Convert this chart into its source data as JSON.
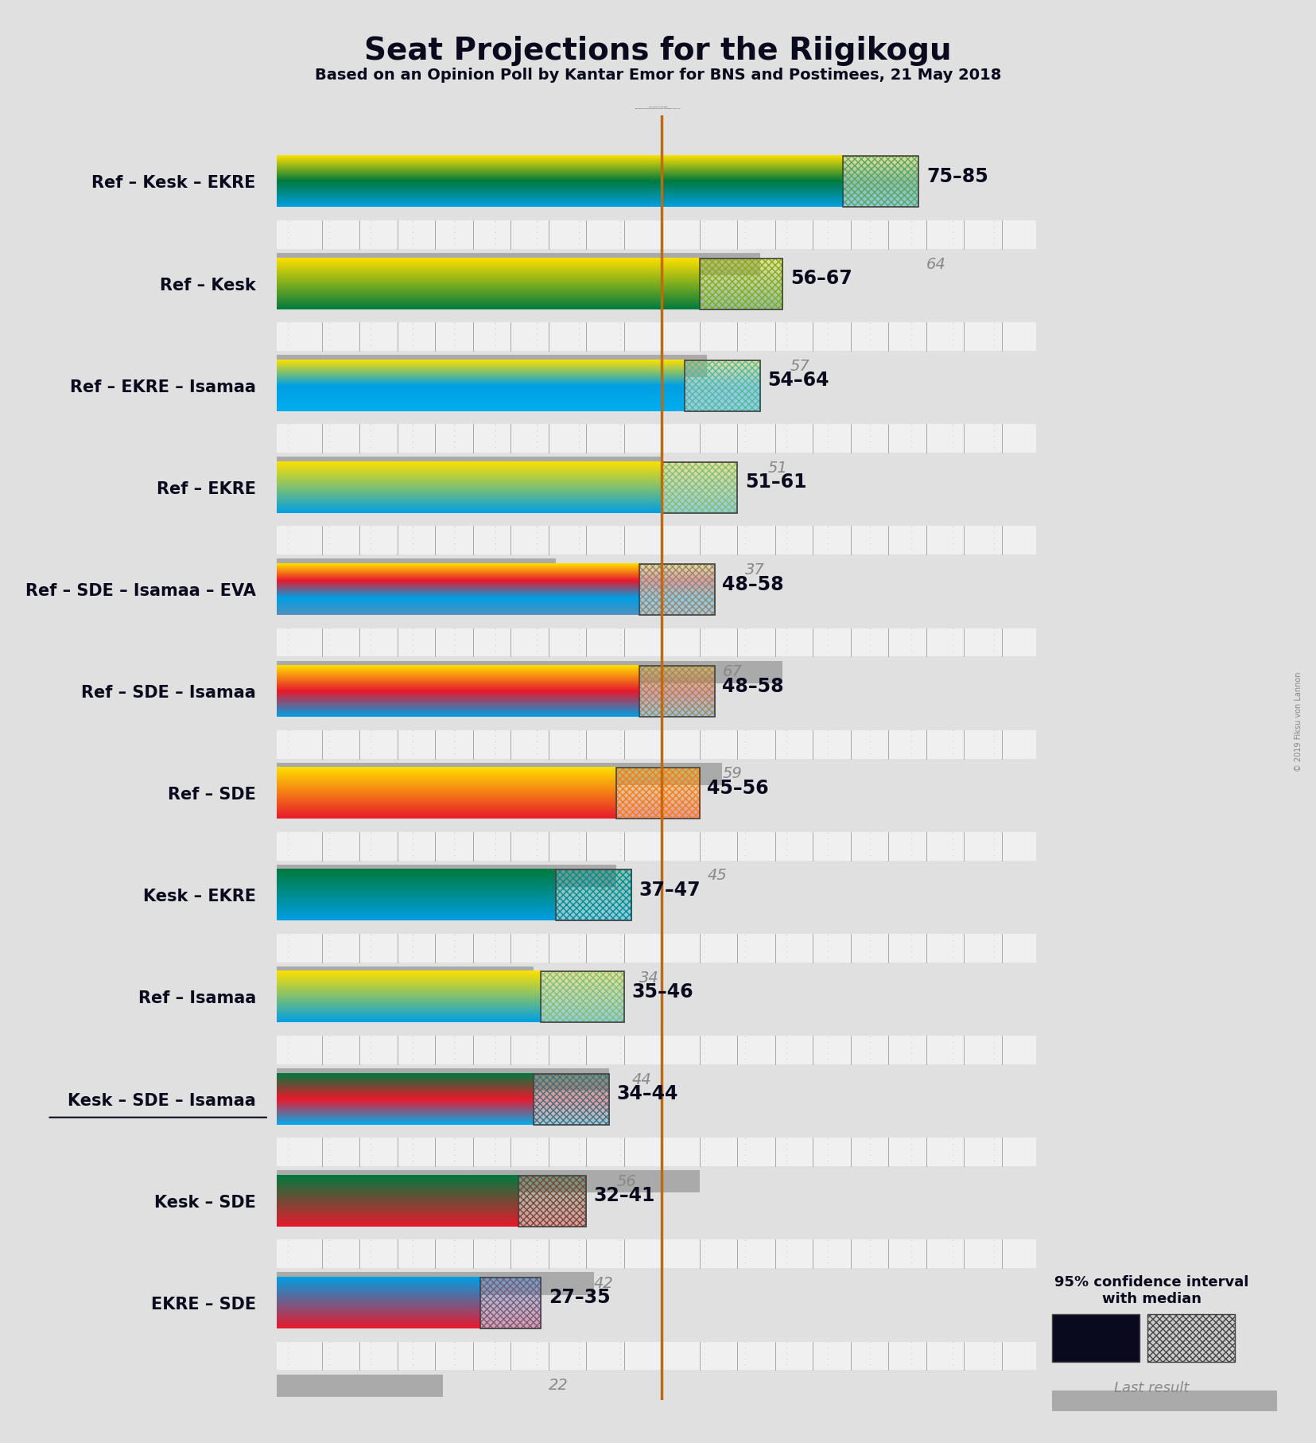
{
  "title": "Seat Projections for the Riigikogu",
  "subtitle": "Based on an Opinion Poll by Kantar Emor for BNS and Postimees, 21 May 2018",
  "background_color": "#e0e0e0",
  "majority_line": 51,
  "coalitions": [
    {
      "name": "Ref – Kesk – EKRE",
      "range_low": 75,
      "range_high": 85,
      "last_result": 64,
      "underline": false,
      "party_colors": [
        "#FFE000",
        "#007A3D",
        "#009FE3"
      ]
    },
    {
      "name": "Ref – Kesk",
      "range_low": 56,
      "range_high": 67,
      "last_result": 57,
      "underline": false,
      "party_colors": [
        "#FFE000",
        "#007A3D"
      ]
    },
    {
      "name": "Ref – EKRE – Isamaa",
      "range_low": 54,
      "range_high": 64,
      "last_result": 51,
      "underline": false,
      "party_colors": [
        "#FFE000",
        "#009FE3",
        "#00AEEF"
      ]
    },
    {
      "name": "Ref – EKRE",
      "range_low": 51,
      "range_high": 61,
      "last_result": 37,
      "underline": false,
      "party_colors": [
        "#FFE000",
        "#009FE3"
      ]
    },
    {
      "name": "Ref – SDE – Isamaa – EVA",
      "range_low": 48,
      "range_high": 58,
      "last_result": 67,
      "underline": false,
      "party_colors": [
        "#FFE000",
        "#E8192C",
        "#009FE3",
        "#5090C0"
      ]
    },
    {
      "name": "Ref – SDE – Isamaa",
      "range_low": 48,
      "range_high": 58,
      "last_result": 59,
      "underline": false,
      "party_colors": [
        "#FFE000",
        "#E8192C",
        "#009FE3"
      ]
    },
    {
      "name": "Ref – SDE",
      "range_low": 45,
      "range_high": 56,
      "last_result": 45,
      "underline": false,
      "party_colors": [
        "#FFE000",
        "#E8192C"
      ]
    },
    {
      "name": "Kesk – EKRE",
      "range_low": 37,
      "range_high": 47,
      "last_result": 34,
      "underline": false,
      "party_colors": [
        "#007A3D",
        "#009FE3"
      ]
    },
    {
      "name": "Ref – Isamaa",
      "range_low": 35,
      "range_high": 46,
      "last_result": 44,
      "underline": false,
      "party_colors": [
        "#FFE000",
        "#009FE3"
      ]
    },
    {
      "name": "Kesk – SDE – Isamaa",
      "range_low": 34,
      "range_high": 44,
      "last_result": 56,
      "underline": true,
      "party_colors": [
        "#007A3D",
        "#E8192C",
        "#00AEEF"
      ]
    },
    {
      "name": "Kesk – SDE",
      "range_low": 32,
      "range_high": 41,
      "last_result": 42,
      "underline": false,
      "party_colors": [
        "#007A3D",
        "#E8192C"
      ]
    },
    {
      "name": "EKRE – SDE",
      "range_low": 27,
      "range_high": 35,
      "last_result": 22,
      "underline": false,
      "party_colors": [
        "#009FE3",
        "#E8192C"
      ]
    }
  ],
  "x_max": 101,
  "majority_line_color": "#CC6600",
  "dot_color": "#aaaaaa",
  "last_result_color": "#aaaaaa",
  "range_text_color": "#0a0a1e",
  "last_text_color": "#888888"
}
